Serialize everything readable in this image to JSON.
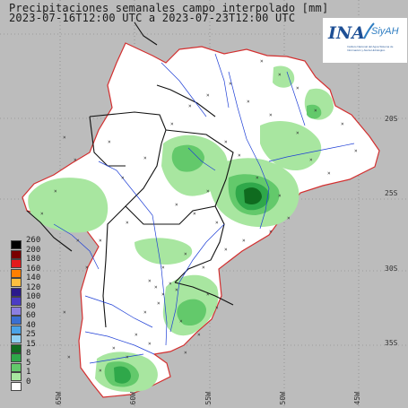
{
  "title": {
    "line1": "Precipitaciones semanales campo interpolado [mm]",
    "line2": "2023-07-16T12:00 UTC a 2023-07-23T12:00 UTC"
  },
  "logo": {
    "name": "INA",
    "product": "SiyAH",
    "subtitle": "Instituto Nacional del Agua Sistema de Información y Alerta Hidrológico"
  },
  "legend": {
    "items": [
      {
        "label": "260",
        "color": "#000000"
      },
      {
        "label": "200",
        "color": "#7a0000"
      },
      {
        "label": "180",
        "color": "#e31a1c"
      },
      {
        "label": "160",
        "color": "#ff7f00"
      },
      {
        "label": "140",
        "color": "#fdbf3f"
      },
      {
        "label": "120",
        "color": "#2a1a8c"
      },
      {
        "label": "100",
        "color": "#4b3cc4"
      },
      {
        "label": "80",
        "color": "#8c7fe0"
      },
      {
        "label": "60",
        "color": "#3a6fd1"
      },
      {
        "label": "40",
        "color": "#4aa3e8"
      },
      {
        "label": "25",
        "color": "#8fd0f2"
      },
      {
        "label": "15",
        "color": "#0f6b1f"
      },
      {
        "label": "8",
        "color": "#2fa84a"
      },
      {
        "label": "5",
        "color": "#63c96b"
      },
      {
        "label": "1",
        "color": "#a8e6a0"
      },
      {
        "label": "0",
        "color": "#ffffff"
      }
    ]
  },
  "latitude_labels": [
    "20S",
    "25S",
    "30S",
    "35S"
  ],
  "longitude_labels": [
    "65W",
    "60W",
    "55W",
    "50W",
    "45W"
  ],
  "colors": {
    "background": "#bcbcbc",
    "basin_fill": "#ffffff",
    "basin_outline": "#d32f2f",
    "rivers": "#1e3fd6",
    "borders": "#111111",
    "grid": "#7a7a7a"
  }
}
